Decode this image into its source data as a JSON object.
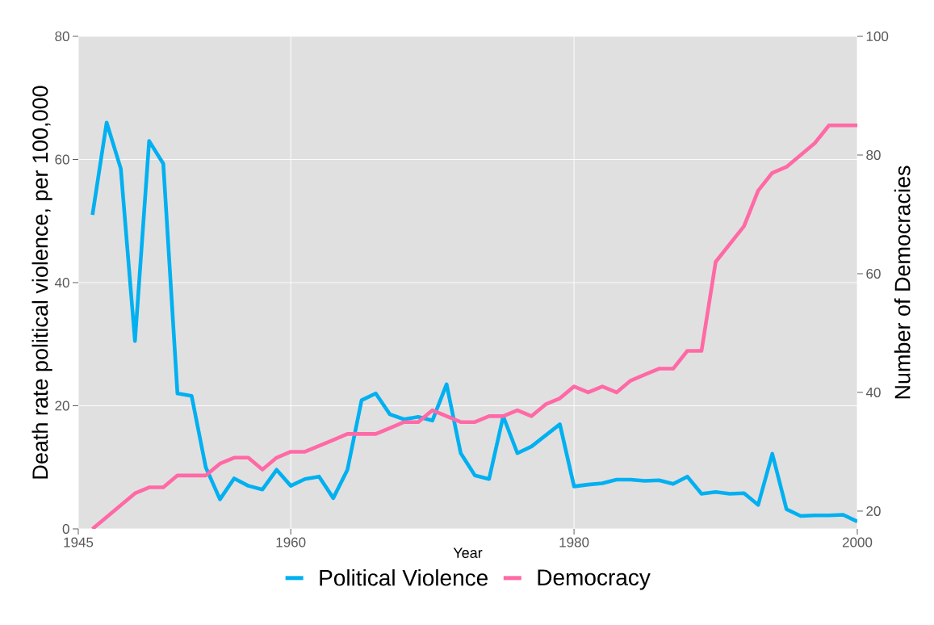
{
  "chart_data": {
    "type": "line",
    "xlabel": "Year",
    "ylabel": "Death rate political violence, per 100,000",
    "y2label": "Number of Democracies",
    "x": [
      1946,
      1947,
      1948,
      1949,
      1950,
      1951,
      1952,
      1953,
      1954,
      1955,
      1956,
      1957,
      1958,
      1959,
      1960,
      1961,
      1962,
      1963,
      1964,
      1965,
      1966,
      1967,
      1968,
      1969,
      1970,
      1971,
      1972,
      1973,
      1974,
      1975,
      1976,
      1977,
      1978,
      1979,
      1980,
      1981,
      1982,
      1983,
      1984,
      1985,
      1986,
      1987,
      1988,
      1989,
      1990,
      1991,
      1992,
      1993,
      1994,
      1995,
      1996,
      1997,
      1998,
      1999,
      2000
    ],
    "series": [
      {
        "name": "Political Violence",
        "color": "#00b0f0",
        "values": [
          51,
          66,
          58.5,
          30.5,
          63,
          59.3,
          22,
          21.6,
          10,
          4.8,
          8.2,
          7,
          6.4,
          9.6,
          7,
          8.1,
          8.5,
          5,
          9.6,
          20.9,
          22,
          18.6,
          17.8,
          18.2,
          17.6,
          23.5,
          12.3,
          8.7,
          8.1,
          18.3,
          12.3,
          13.4,
          15.2,
          17,
          6.9,
          7.2,
          7.4,
          8,
          8,
          7.8,
          7.9,
          7.3,
          8.5,
          5.7,
          6,
          5.7,
          5.8,
          3.9,
          12.2,
          3.2,
          2.1,
          2.2,
          2.2,
          2.3,
          1.2
        ]
      },
      {
        "name": "Democracy",
        "color": "#ff69a5",
        "axis": "y2",
        "values": [
          17,
          19,
          21,
          23,
          24,
          24,
          26,
          26,
          26,
          28,
          29,
          29,
          27,
          29,
          30,
          30,
          31,
          32,
          33,
          33,
          33,
          34,
          35,
          35,
          37,
          36,
          35,
          35,
          36,
          36,
          37,
          36,
          38,
          39,
          41,
          40,
          41,
          40,
          42,
          43,
          44,
          44,
          47,
          47,
          62,
          65,
          68,
          74,
          77,
          78,
          80,
          82,
          85,
          85,
          85
        ]
      }
    ],
    "xlim": [
      1945,
      2000
    ],
    "xticks": [
      1945,
      1960,
      1980,
      2000
    ],
    "ylim": [
      0,
      80
    ],
    "yticks": [
      0,
      20,
      40,
      60,
      80
    ],
    "y2lim": [
      17,
      100
    ],
    "y2ticks": [
      20,
      40,
      60,
      80,
      100
    ],
    "grid": true,
    "legend": "bottom",
    "line_style": "solid"
  }
}
